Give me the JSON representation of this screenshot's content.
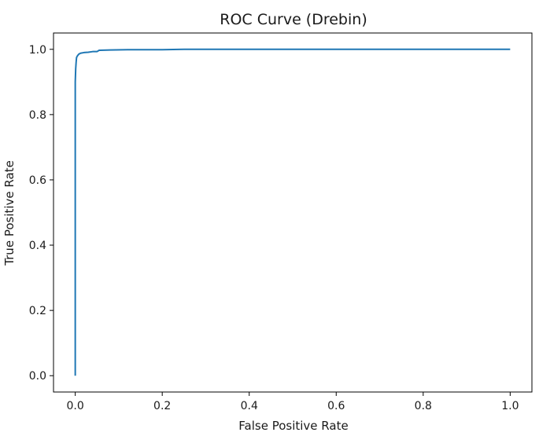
{
  "chart_data": {
    "type": "line",
    "title": "ROC Curve (Drebin)",
    "xlabel": "False Positive Rate",
    "ylabel": "True Positive Rate",
    "xlim": [
      -0.05,
      1.05
    ],
    "ylim": [
      -0.05,
      1.05
    ],
    "xticks": [
      0.0,
      0.2,
      0.4,
      0.6,
      0.8,
      1.0
    ],
    "xtick_labels": [
      "0.0",
      "0.2",
      "0.4",
      "0.6",
      "0.8",
      "1.0"
    ],
    "yticks": [
      0.0,
      0.2,
      0.4,
      0.6,
      0.8,
      1.0
    ],
    "ytick_labels": [
      "0.0",
      "0.2",
      "0.4",
      "0.6",
      "0.8",
      "1.0"
    ],
    "grid": false,
    "series": [
      {
        "color": "#1f77b4",
        "x": [
          0.0,
          0.0,
          0.001,
          0.002,
          0.003,
          0.005,
          0.008,
          0.012,
          0.02,
          0.03,
          0.04,
          0.05,
          0.055,
          0.08,
          0.12,
          0.2,
          0.25,
          0.4,
          0.6,
          0.8,
          1.0
        ],
        "y": [
          0.0,
          0.9,
          0.94,
          0.96,
          0.975,
          0.98,
          0.985,
          0.988,
          0.99,
          0.991,
          0.993,
          0.993,
          0.997,
          0.998,
          0.999,
          0.999,
          1.0,
          1.0,
          1.0,
          1.0,
          1.0
        ]
      }
    ]
  }
}
